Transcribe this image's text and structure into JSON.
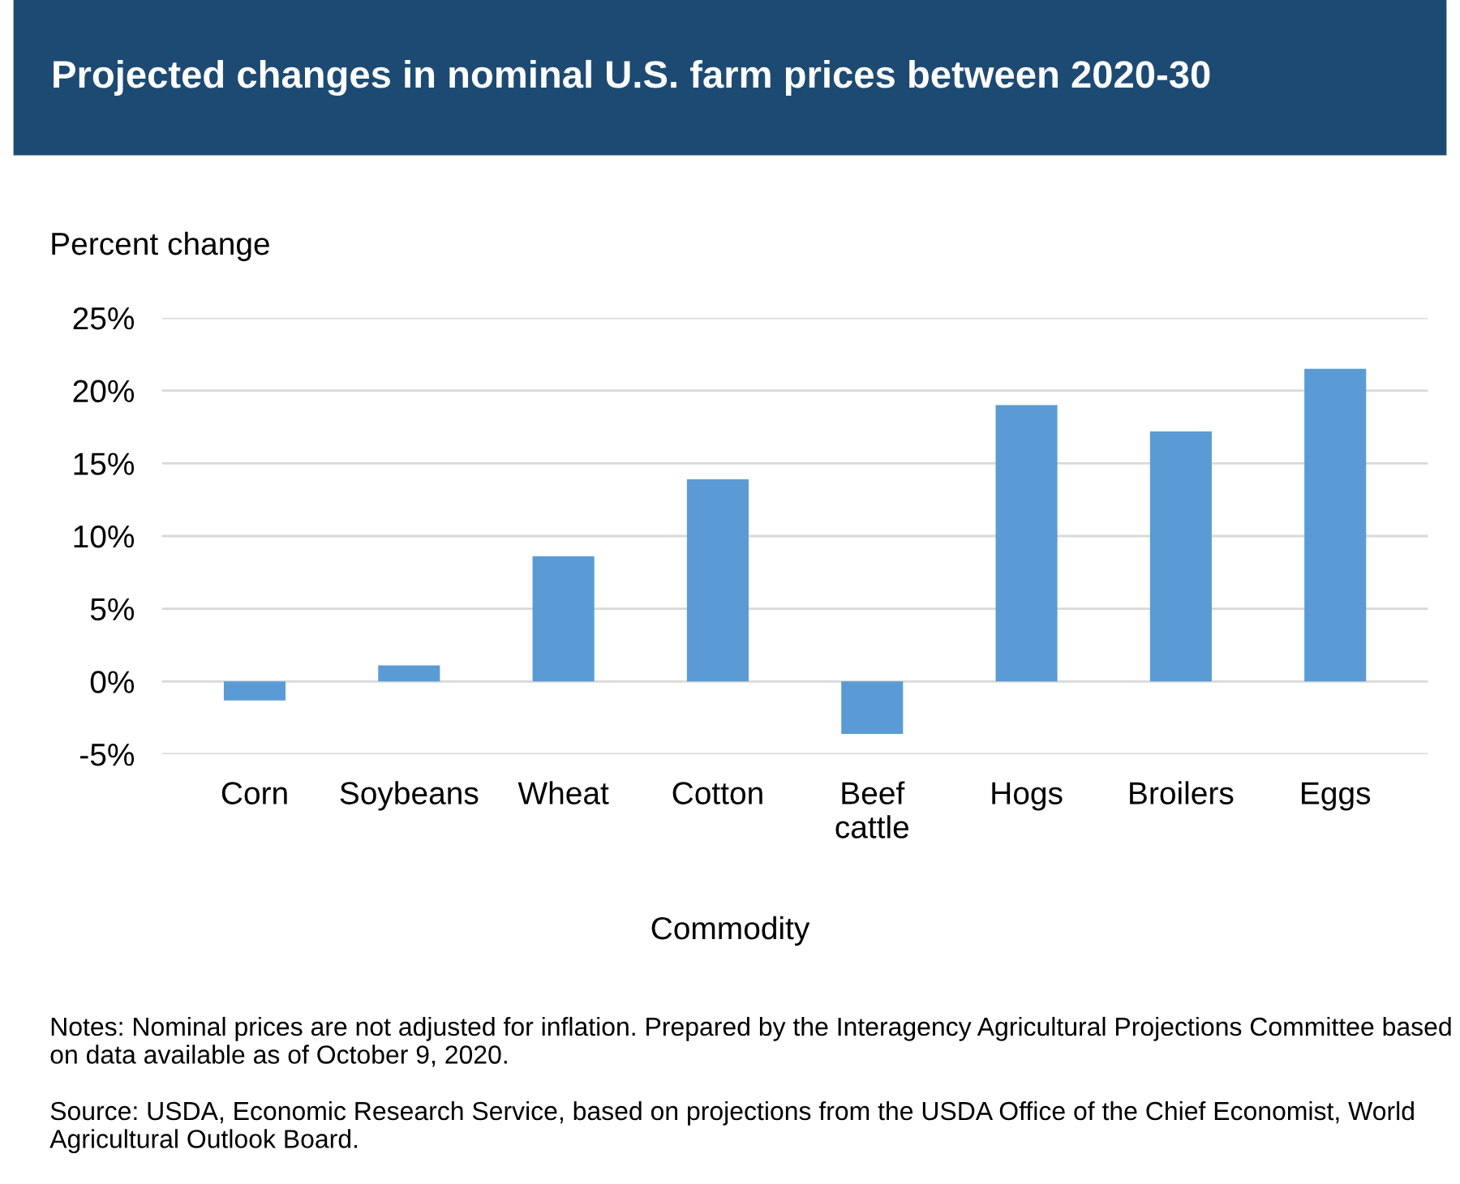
{
  "chart_data": {
    "type": "bar",
    "title": "Projected changes in nominal U.S. farm prices between 2020-30",
    "ylabel": "Percent change",
    "xlabel": "Commodity",
    "categories": [
      "Corn",
      "Soybeans",
      "Wheat",
      "Cotton",
      "Beef cattle",
      "Hogs",
      "Broilers",
      "Eggs"
    ],
    "values": [
      -1.3,
      1.1,
      8.6,
      13.9,
      -3.6,
      19.0,
      17.2,
      21.5
    ],
    "color": "#5b9bd5",
    "ylim": [
      -5,
      25
    ],
    "yticks": [
      {
        "value": -5,
        "label": "-5%"
      },
      {
        "value": 0,
        "label": "0%"
      },
      {
        "value": 5,
        "label": "5%"
      },
      {
        "value": 10,
        "label": "10%"
      },
      {
        "value": 15,
        "label": "15%"
      },
      {
        "value": 20,
        "label": "20%"
      },
      {
        "value": 25,
        "label": "25%"
      }
    ],
    "grid": "y",
    "annotations": [
      "Notes: Nominal prices are not adjusted for inflation. Prepared by the Interagency Agricultural Projections Committee based on data available as of October 9, 2020.",
      "Source: USDA, Economic Research Service, based on projections from the USDA Office of the Chief Economist, World Agricultural Outlook Board."
    ]
  }
}
